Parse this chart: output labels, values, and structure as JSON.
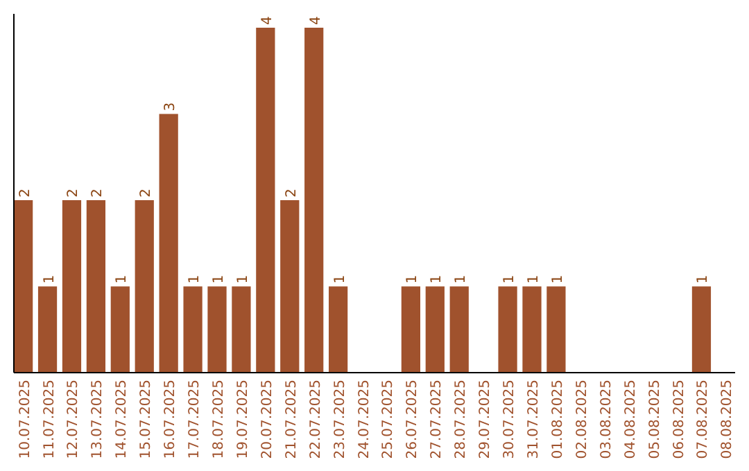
{
  "chart_data": {
    "type": "bar",
    "categories": [
      "10.07.2025",
      "11.07.2025",
      "12.07.2025",
      "13.07.2025",
      "14.07.2025",
      "15.07.2025",
      "16.07.2025",
      "17.07.2025",
      "18.07.2025",
      "19.07.2025",
      "20.07.2025",
      "21.07.2025",
      "22.07.2025",
      "23.07.2025",
      "24.07.2025",
      "25.07.2025",
      "26.07.2025",
      "27.07.2025",
      "28.07.2025",
      "29.07.2025",
      "30.07.2025",
      "31.07.2025",
      "01.08.2025",
      "02.08.2025",
      "03.08.2025",
      "04.08.2025",
      "05.08.2025",
      "06.08.2025",
      "07.08.2025",
      "08.08.2025"
    ],
    "values": [
      2,
      1,
      2,
      2,
      1,
      2,
      3,
      1,
      1,
      1,
      4,
      2,
      4,
      1,
      0,
      0,
      1,
      1,
      1,
      0,
      1,
      1,
      1,
      0,
      0,
      0,
      0,
      0,
      1,
      0
    ],
    "value_labels": [
      "2",
      "1",
      "2",
      "2",
      "1",
      "2",
      "3",
      "1",
      "1",
      "1",
      "4",
      "2",
      "4",
      "1",
      null,
      null,
      "1",
      "1",
      "1",
      null,
      "1",
      "1",
      "1",
      null,
      null,
      null,
      null,
      null,
      "1",
      null
    ],
    "color": "#a0522d"
  }
}
